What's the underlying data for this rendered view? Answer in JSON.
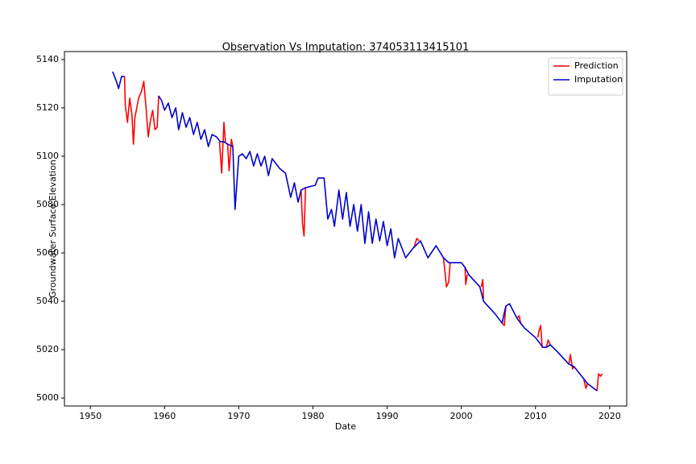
{
  "chart_data": {
    "type": "line",
    "title": "Observation Vs Imputation: 374053113415101",
    "x_label": "Date",
    "y_label": "Groundwater Surface Elevation",
    "xlim": [
      1946.5,
      2022.3
    ],
    "ylim": [
      4996.7,
      5143.3
    ],
    "xticks": [
      1950,
      1960,
      1970,
      1980,
      1990,
      2000,
      2010,
      2020
    ],
    "yticks": [
      5000,
      5020,
      5040,
      5060,
      5080,
      5100,
      5120,
      5140
    ],
    "legend": "upper right",
    "series": [
      {
        "name": "Prediction",
        "color": "#ff0000",
        "x": [
          1954.6,
          1954.7,
          1955.0,
          1955.3,
          1955.6,
          1955.8,
          1956.0,
          1956.5,
          1956.9,
          1957.2,
          1957.5,
          1957.8,
          1958.1,
          1958.4,
          1958.7,
          1959.0,
          1959.2,
          1963,
          1967.4,
          1967.7,
          1968.0,
          1968.2,
          1968.4,
          1968.5,
          1968.7,
          1969.0,
          1969.2,
          1974,
          1978.4,
          1978.6,
          1978.8,
          1979.0,
          1986,
          1993.6,
          1994.0,
          1994.3,
          1996,
          1997.6,
          1998.0,
          1998.3,
          1998.5,
          1999,
          2000.5,
          2000.6,
          2000.8,
          2002,
          2002.7,
          2002.9,
          2003.0,
          2004,
          2005.5,
          2005.8,
          2006.0,
          2007,
          2007.5,
          2007.8,
          2008.0,
          2008.2,
          2009,
          2010.3,
          2010.5,
          2010.7,
          2010.9,
          2011.0,
          2011.2,
          2011.5,
          2011.7,
          2012.0,
          2013,
          2014.5,
          2014.7,
          2015.0,
          2015.2,
          2016,
          2016.5,
          2016.8,
          2017.0,
          2017.5,
          2018.3,
          2018.5,
          2018.8,
          2019.0
        ],
        "values": [
          5133,
          5121,
          5114,
          5124,
          5117,
          5105,
          5116,
          5124,
          5127,
          5131,
          5120,
          5108,
          5115,
          5119,
          5111,
          5112,
          5125,
          null,
          5106,
          5093,
          5114,
          5106,
          null,
          5105,
          5094,
          5107,
          5104,
          null,
          5086,
          5072,
          5067,
          5087,
          null,
          5062,
          5066,
          5065,
          null,
          5058,
          5046,
          5048,
          5056,
          null,
          5054,
          5047,
          5051,
          null,
          5046,
          5049,
          5041,
          null,
          5031,
          5030,
          5038,
          null,
          5033,
          5034,
          5031,
          5030,
          null,
          5025,
          5028,
          5030,
          5021,
          5021,
          null,
          5021,
          5024,
          5022,
          null,
          5014,
          5018,
          5012,
          5013,
          null,
          5008,
          5004,
          5006,
          null,
          5003,
          5010,
          5009,
          5010
        ]
      },
      {
        "name": "Imputation",
        "color": "#0000cc",
        "x": [
          1953.0,
          1953.5,
          1953.8,
          1954.2,
          1954.6,
          1957,
          1959.2,
          1959.6,
          1960.0,
          1960.5,
          1961.0,
          1961.5,
          1961.9,
          1962.4,
          1962.9,
          1963.4,
          1963.9,
          1964.4,
          1964.9,
          1965.4,
          1965.9,
          1966.4,
          1967.0,
          1967.5,
          1968.0,
          1968.5,
          1969.2,
          1969.5,
          1970.0,
          1970.5,
          1971.0,
          1971.5,
          1972.0,
          1972.5,
          1973.0,
          1973.5,
          1974.0,
          1974.5,
          1975.5,
          1976.3,
          1977.0,
          1977.5,
          1978.0,
          1978.4,
          1979.0,
          1980.3,
          1980.7,
          1981.5,
          1982.0,
          1982.5,
          1982.9,
          1983.5,
          1984.0,
          1984.5,
          1985.0,
          1985.5,
          1986.0,
          1986.5,
          1987.0,
          1987.5,
          1988.0,
          1988.5,
          1989.0,
          1989.5,
          1990.0,
          1990.5,
          1991.0,
          1991.5,
          1992.5,
          1993.5,
          1994.5,
          1995.5,
          1996.6,
          1997.6,
          1998.3,
          2000.0,
          2000.5,
          2001.0,
          2002.5,
          2003.0,
          2004.5,
          2005.5,
          2006.0,
          2006.5,
          2007.5,
          2008.5,
          2010.0,
          2011.0,
          2011.5,
          2012.0,
          2013.0,
          2014.5,
          2015.2,
          2016.5,
          2017.0,
          2018.3
        ],
        "values": [
          5135,
          5131,
          5128,
          5133,
          5133,
          null,
          5125,
          5123,
          5119,
          5122,
          5116,
          5120,
          5111,
          5118,
          5112,
          5116,
          5109,
          5114,
          5107,
          5111,
          5104,
          5109,
          5108,
          5106,
          5106,
          5105,
          5104,
          5078,
          5100,
          5101,
          5099,
          5102,
          5096,
          5101,
          5096,
          5100,
          5092,
          5099,
          5095,
          5093,
          5083,
          5089,
          5081,
          5086,
          5087,
          5088,
          5091,
          5091,
          5074,
          5078,
          5071,
          5086,
          5074,
          5085,
          5071,
          5080,
          5069,
          5080,
          5064,
          5077,
          5064,
          5074,
          5065,
          5073,
          5063,
          5070,
          5058,
          5066,
          5058,
          5062,
          5065,
          5058,
          5063,
          5058,
          5056,
          5056,
          5054,
          5051,
          5046,
          5040,
          5035,
          5031,
          5038,
          5039,
          5033,
          5029,
          5025,
          5021,
          5021,
          5022,
          5019,
          5014,
          5013,
          5008,
          5006,
          5003
        ]
      }
    ]
  }
}
